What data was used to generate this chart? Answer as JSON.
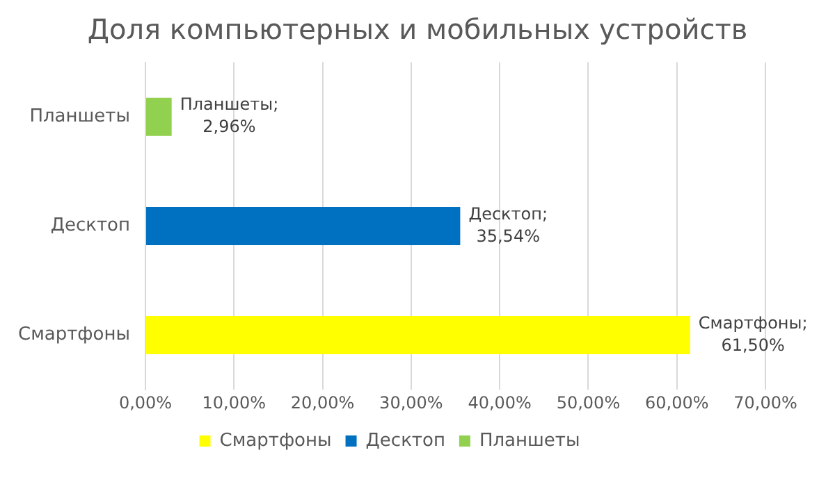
{
  "chart_data": {
    "type": "bar",
    "orientation": "horizontal",
    "title": "Доля компьютерных и мобильных устройств",
    "categories": [
      "Планшеты",
      "Десктоп",
      "Смартфоны"
    ],
    "series": [
      {
        "name": "Смартфоны",
        "color": "#ffff00",
        "values": [
          null,
          null,
          61.5
        ],
        "value_labels": [
          null,
          null,
          "Смартфоны;\n61,50%"
        ]
      },
      {
        "name": "Десктоп",
        "color": "#0070c0",
        "values": [
          null,
          35.54,
          null
        ],
        "value_labels": [
          null,
          "Десктоп;\n35,54%",
          null
        ]
      },
      {
        "name": "Планшеты",
        "color": "#92d050",
        "values": [
          2.96,
          null,
          null
        ],
        "value_labels": [
          "Планшеты;\n2,96%",
          null,
          null
        ]
      }
    ],
    "xlim": [
      0,
      70
    ],
    "xticks": [
      {
        "value": 0,
        "label": "0,00%"
      },
      {
        "value": 10,
        "label": "10,00%"
      },
      {
        "value": 20,
        "label": "20,00%"
      },
      {
        "value": 30,
        "label": "30,00%"
      },
      {
        "value": 40,
        "label": "40,00%"
      },
      {
        "value": 50,
        "label": "50,00%"
      },
      {
        "value": 60,
        "label": "60,00%"
      },
      {
        "value": 70,
        "label": "70,00%"
      }
    ],
    "grid": "x",
    "legend": "bottom"
  }
}
